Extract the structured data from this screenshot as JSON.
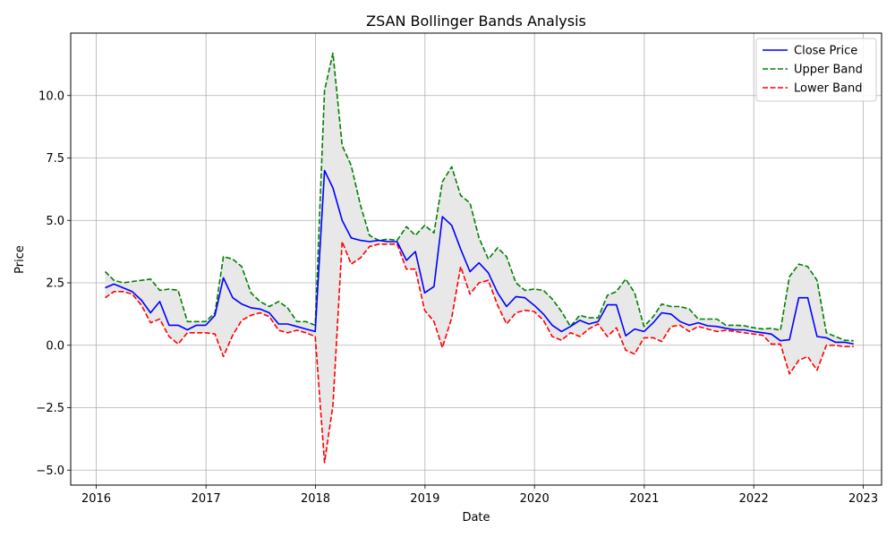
{
  "chart_data": {
    "type": "line",
    "title": "ZSAN Bollinger Bands Analysis",
    "xlabel": "Date",
    "ylabel": "Price",
    "xlim": [
      "2015-10-08",
      "2023-03-03"
    ],
    "ylim": [
      -5.6,
      12.5
    ],
    "x_ticks": [
      "2016",
      "2017",
      "2018",
      "2019",
      "2020",
      "2021",
      "2022",
      "2023"
    ],
    "y_ticks": [
      -5.0,
      -2.5,
      0.0,
      2.5,
      5.0,
      7.5,
      10.0
    ],
    "y_tick_labels": [
      "−5.0",
      "−2.5",
      "0.0",
      "2.5",
      "5.0",
      "7.5",
      "10.0"
    ],
    "grid": true,
    "legend_position": "top-right",
    "band_fill_color": "#e8e8e8",
    "dates": [
      "2016-01-31",
      "2016-02-29",
      "2016-03-31",
      "2016-04-30",
      "2016-05-31",
      "2016-06-30",
      "2016-07-31",
      "2016-08-31",
      "2016-09-30",
      "2016-10-31",
      "2016-11-30",
      "2016-12-31",
      "2017-01-31",
      "2017-02-28",
      "2017-03-31",
      "2017-04-30",
      "2017-05-31",
      "2017-06-30",
      "2017-07-31",
      "2017-08-31",
      "2017-09-30",
      "2017-10-31",
      "2017-11-30",
      "2017-12-31",
      "2018-01-31",
      "2018-02-28",
      "2018-03-31",
      "2018-04-30",
      "2018-05-31",
      "2018-06-30",
      "2018-07-31",
      "2018-08-31",
      "2018-09-30",
      "2018-10-31",
      "2018-11-30",
      "2018-12-31",
      "2019-01-31",
      "2019-02-28",
      "2019-03-31",
      "2019-04-30",
      "2019-05-31",
      "2019-06-30",
      "2019-07-31",
      "2019-08-31",
      "2019-09-30",
      "2019-10-31",
      "2019-11-30",
      "2019-12-31",
      "2020-01-31",
      "2020-02-29",
      "2020-03-31",
      "2020-04-30",
      "2020-05-31",
      "2020-06-30",
      "2020-07-31",
      "2020-08-31",
      "2020-09-30",
      "2020-10-31",
      "2020-11-30",
      "2020-12-31",
      "2021-01-31",
      "2021-02-28",
      "2021-03-31",
      "2021-04-30",
      "2021-05-31",
      "2021-06-30",
      "2021-07-31",
      "2021-08-31",
      "2021-09-30",
      "2021-10-31",
      "2021-11-30",
      "2021-12-31",
      "2022-01-31",
      "2022-02-28",
      "2022-03-31",
      "2022-04-30",
      "2022-05-31",
      "2022-06-30",
      "2022-07-31",
      "2022-08-31",
      "2022-09-30",
      "2022-10-31",
      "2022-11-30"
    ],
    "series": [
      {
        "name": "Close Price",
        "color": "#0000ff",
        "style": "solid",
        "values": [
          2.3,
          2.45,
          2.3,
          2.15,
          1.8,
          1.3,
          1.75,
          0.8,
          0.8,
          0.62,
          0.8,
          0.8,
          1.2,
          2.7,
          1.9,
          1.65,
          1.5,
          1.45,
          1.3,
          0.85,
          0.85,
          0.75,
          0.65,
          0.55,
          7.0,
          6.3,
          5.0,
          4.3,
          4.2,
          4.15,
          4.2,
          4.15,
          4.15,
          3.4,
          3.75,
          2.1,
          2.35,
          5.15,
          4.8,
          3.85,
          2.95,
          3.3,
          2.9,
          2.1,
          1.55,
          1.95,
          1.9,
          1.6,
          1.25,
          0.8,
          0.55,
          0.75,
          1.0,
          0.85,
          0.95,
          1.62,
          1.62,
          0.38,
          0.65,
          0.55,
          0.9,
          1.3,
          1.25,
          0.95,
          0.8,
          0.9,
          0.78,
          0.75,
          0.68,
          0.62,
          0.62,
          0.55,
          0.5,
          0.45,
          0.18,
          0.22,
          1.9,
          1.9,
          0.35,
          0.3,
          0.12,
          0.12,
          0.05
        ]
      },
      {
        "name": "Upper Band",
        "color": "#008000",
        "style": "dashed",
        "values": [
          2.95,
          2.6,
          2.5,
          2.55,
          2.6,
          2.65,
          2.2,
          2.25,
          2.2,
          0.95,
          0.95,
          0.95,
          1.3,
          3.55,
          3.45,
          3.15,
          2.1,
          1.75,
          1.55,
          1.75,
          1.5,
          0.95,
          0.95,
          0.8,
          10.2,
          11.7,
          8.0,
          7.2,
          5.6,
          4.4,
          4.2,
          4.25,
          4.2,
          4.75,
          4.4,
          4.8,
          4.5,
          6.55,
          7.15,
          6.0,
          5.7,
          4.3,
          3.45,
          3.9,
          3.55,
          2.5,
          2.2,
          2.25,
          2.2,
          1.85,
          1.35,
          0.75,
          1.2,
          1.1,
          1.1,
          2.0,
          2.15,
          2.65,
          2.1,
          0.75,
          1.15,
          1.65,
          1.55,
          1.55,
          1.45,
          1.05,
          1.05,
          1.05,
          0.8,
          0.8,
          0.78,
          0.7,
          0.65,
          0.68,
          0.6,
          2.75,
          3.25,
          3.15,
          2.6,
          0.5,
          0.35,
          0.2,
          0.18
        ]
      },
      {
        "name": "Lower Band",
        "color": "#ff0000",
        "style": "dashed",
        "values": [
          1.9,
          2.15,
          2.15,
          2.05,
          1.6,
          0.9,
          1.05,
          0.35,
          0.05,
          0.5,
          0.5,
          0.5,
          0.45,
          -0.45,
          0.4,
          1.0,
          1.2,
          1.3,
          1.15,
          0.6,
          0.5,
          0.6,
          0.5,
          0.35,
          -4.7,
          -2.4,
          4.15,
          3.25,
          3.5,
          3.95,
          4.05,
          4.05,
          4.05,
          3.05,
          3.05,
          1.4,
          0.95,
          -0.1,
          1.1,
          3.15,
          2.05,
          2.5,
          2.6,
          1.6,
          0.85,
          1.3,
          1.4,
          1.35,
          1.0,
          0.35,
          0.2,
          0.5,
          0.35,
          0.65,
          0.85,
          0.35,
          0.7,
          -0.2,
          -0.35,
          0.3,
          0.3,
          0.15,
          0.75,
          0.8,
          0.55,
          0.75,
          0.65,
          0.55,
          0.6,
          0.55,
          0.5,
          0.45,
          0.4,
          0.05,
          0.05,
          -1.15,
          -0.6,
          -0.45,
          -1.0,
          0.0,
          0.0,
          -0.05,
          -0.05
        ]
      }
    ]
  }
}
